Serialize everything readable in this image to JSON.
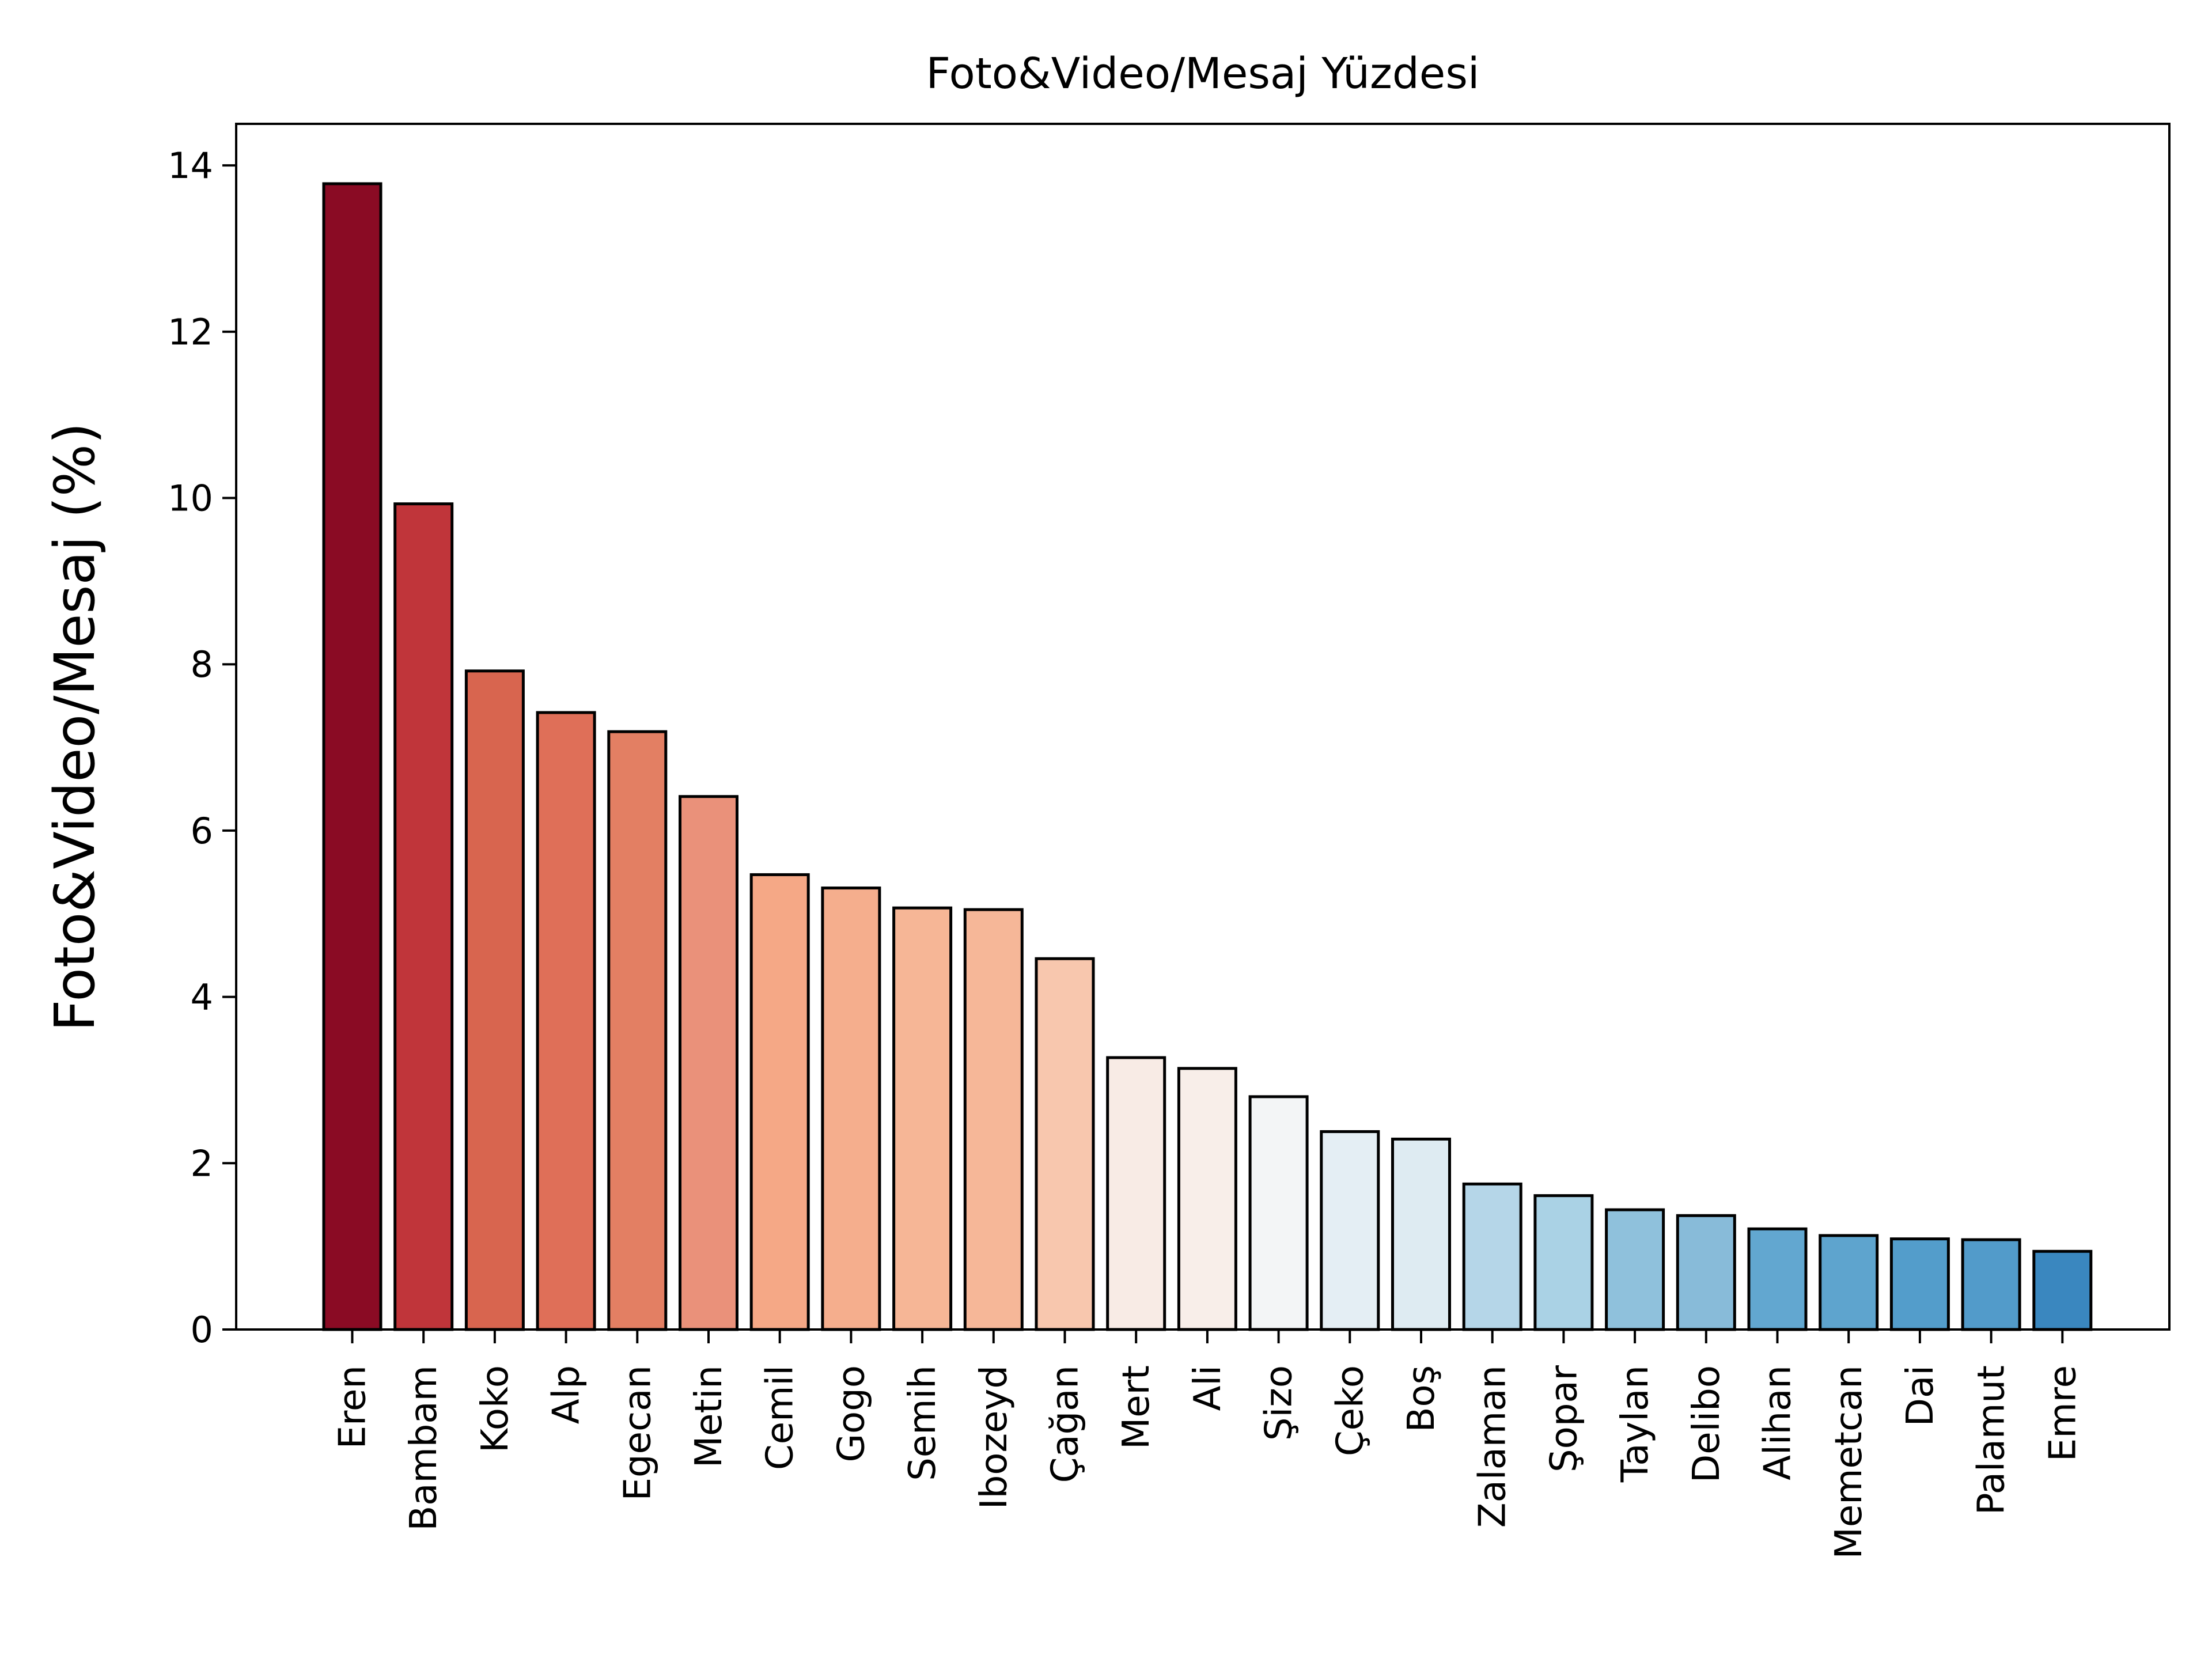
{
  "chart_data": {
    "type": "bar",
    "title": "Foto&Video/Mesaj Yüzdesi",
    "xlabel": "",
    "ylabel": "Foto&Video/Mesaj (%)",
    "ylim": [
      0,
      14.5
    ],
    "yticks": [
      0,
      2,
      4,
      6,
      8,
      10,
      12,
      14
    ],
    "grid": false,
    "legend": "none",
    "colormap": "RdBu (dark red → blue)",
    "categories": [
      "Eren",
      "Bambam",
      "Koko",
      "Alp",
      "Egecan",
      "Metin",
      "Cemil",
      "Gogo",
      "Semih",
      "Ibozeyd",
      "Çağan",
      "Mert",
      "Ali",
      "Şizo",
      "Çeko",
      "Boş",
      "Zalaman",
      "Şopar",
      "Taylan",
      "Delibo",
      "Alihan",
      "Memetcan",
      "Dai",
      "Palamut",
      "Emre"
    ],
    "values": [
      13.78,
      9.93,
      7.92,
      7.42,
      7.19,
      6.41,
      5.47,
      5.31,
      5.07,
      5.05,
      4.46,
      3.27,
      3.14,
      2.8,
      2.38,
      2.29,
      1.75,
      1.61,
      1.44,
      1.37,
      1.21,
      1.13,
      1.09,
      1.08,
      0.94
    ],
    "colors": [
      "#8a0b24",
      "#c0353a",
      "#d8654f",
      "#df6f58",
      "#e37f63",
      "#ea917a",
      "#f5a886",
      "#f5ae8d",
      "#f6b696",
      "#f6b798",
      "#f8c7ae",
      "#f8ebe5",
      "#f8eee9",
      "#f3f5f6",
      "#e4eef4",
      "#deebf2",
      "#b5d6e8",
      "#aad2e5",
      "#8fc1dc",
      "#88bbd9",
      "#62a7d0",
      "#5ea4ce",
      "#539dcb",
      "#529bca",
      "#3a87bf"
    ],
    "edge_color": "#000000"
  }
}
